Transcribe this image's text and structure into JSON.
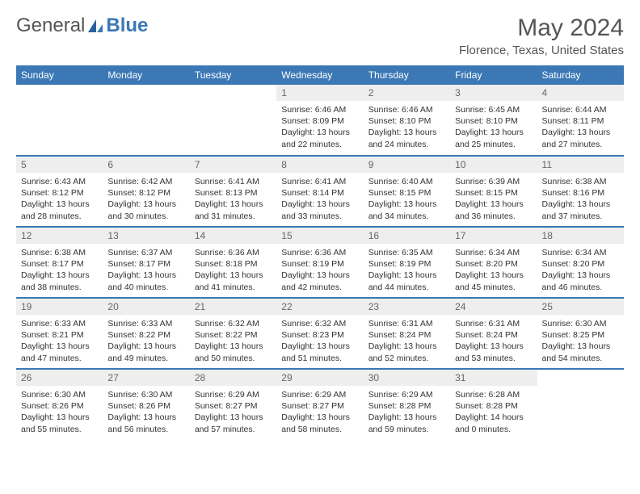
{
  "logo": {
    "text1": "General",
    "text2": "Blue"
  },
  "title": "May 2024",
  "location": "Florence, Texas, United States",
  "colors": {
    "header_bg": "#3b78b5",
    "header_text": "#ffffff",
    "daynum_bg": "#eeeeee",
    "daynum_text": "#666666",
    "rule": "#3b78b5",
    "body_text": "#333333",
    "title_text": "#555555"
  },
  "typography": {
    "month_title_fontsize": 30,
    "location_fontsize": 15,
    "weekday_fontsize": 12,
    "daynum_fontsize": 12,
    "cell_fontsize": 10.5,
    "font_family": "Arial"
  },
  "weekdays": [
    "Sunday",
    "Monday",
    "Tuesday",
    "Wednesday",
    "Thursday",
    "Friday",
    "Saturday"
  ],
  "weeks": [
    [
      {
        "empty": true
      },
      {
        "empty": true
      },
      {
        "empty": true
      },
      {
        "day": "1",
        "sunrise": "Sunrise: 6:46 AM",
        "sunset": "Sunset: 8:09 PM",
        "daylight1": "Daylight: 13 hours",
        "daylight2": "and 22 minutes."
      },
      {
        "day": "2",
        "sunrise": "Sunrise: 6:46 AM",
        "sunset": "Sunset: 8:10 PM",
        "daylight1": "Daylight: 13 hours",
        "daylight2": "and 24 minutes."
      },
      {
        "day": "3",
        "sunrise": "Sunrise: 6:45 AM",
        "sunset": "Sunset: 8:10 PM",
        "daylight1": "Daylight: 13 hours",
        "daylight2": "and 25 minutes."
      },
      {
        "day": "4",
        "sunrise": "Sunrise: 6:44 AM",
        "sunset": "Sunset: 8:11 PM",
        "daylight1": "Daylight: 13 hours",
        "daylight2": "and 27 minutes."
      }
    ],
    [
      {
        "day": "5",
        "sunrise": "Sunrise: 6:43 AM",
        "sunset": "Sunset: 8:12 PM",
        "daylight1": "Daylight: 13 hours",
        "daylight2": "and 28 minutes."
      },
      {
        "day": "6",
        "sunrise": "Sunrise: 6:42 AM",
        "sunset": "Sunset: 8:12 PM",
        "daylight1": "Daylight: 13 hours",
        "daylight2": "and 30 minutes."
      },
      {
        "day": "7",
        "sunrise": "Sunrise: 6:41 AM",
        "sunset": "Sunset: 8:13 PM",
        "daylight1": "Daylight: 13 hours",
        "daylight2": "and 31 minutes."
      },
      {
        "day": "8",
        "sunrise": "Sunrise: 6:41 AM",
        "sunset": "Sunset: 8:14 PM",
        "daylight1": "Daylight: 13 hours",
        "daylight2": "and 33 minutes."
      },
      {
        "day": "9",
        "sunrise": "Sunrise: 6:40 AM",
        "sunset": "Sunset: 8:15 PM",
        "daylight1": "Daylight: 13 hours",
        "daylight2": "and 34 minutes."
      },
      {
        "day": "10",
        "sunrise": "Sunrise: 6:39 AM",
        "sunset": "Sunset: 8:15 PM",
        "daylight1": "Daylight: 13 hours",
        "daylight2": "and 36 minutes."
      },
      {
        "day": "11",
        "sunrise": "Sunrise: 6:38 AM",
        "sunset": "Sunset: 8:16 PM",
        "daylight1": "Daylight: 13 hours",
        "daylight2": "and 37 minutes."
      }
    ],
    [
      {
        "day": "12",
        "sunrise": "Sunrise: 6:38 AM",
        "sunset": "Sunset: 8:17 PM",
        "daylight1": "Daylight: 13 hours",
        "daylight2": "and 38 minutes."
      },
      {
        "day": "13",
        "sunrise": "Sunrise: 6:37 AM",
        "sunset": "Sunset: 8:17 PM",
        "daylight1": "Daylight: 13 hours",
        "daylight2": "and 40 minutes."
      },
      {
        "day": "14",
        "sunrise": "Sunrise: 6:36 AM",
        "sunset": "Sunset: 8:18 PM",
        "daylight1": "Daylight: 13 hours",
        "daylight2": "and 41 minutes."
      },
      {
        "day": "15",
        "sunrise": "Sunrise: 6:36 AM",
        "sunset": "Sunset: 8:19 PM",
        "daylight1": "Daylight: 13 hours",
        "daylight2": "and 42 minutes."
      },
      {
        "day": "16",
        "sunrise": "Sunrise: 6:35 AM",
        "sunset": "Sunset: 8:19 PM",
        "daylight1": "Daylight: 13 hours",
        "daylight2": "and 44 minutes."
      },
      {
        "day": "17",
        "sunrise": "Sunrise: 6:34 AM",
        "sunset": "Sunset: 8:20 PM",
        "daylight1": "Daylight: 13 hours",
        "daylight2": "and 45 minutes."
      },
      {
        "day": "18",
        "sunrise": "Sunrise: 6:34 AM",
        "sunset": "Sunset: 8:20 PM",
        "daylight1": "Daylight: 13 hours",
        "daylight2": "and 46 minutes."
      }
    ],
    [
      {
        "day": "19",
        "sunrise": "Sunrise: 6:33 AM",
        "sunset": "Sunset: 8:21 PM",
        "daylight1": "Daylight: 13 hours",
        "daylight2": "and 47 minutes."
      },
      {
        "day": "20",
        "sunrise": "Sunrise: 6:33 AM",
        "sunset": "Sunset: 8:22 PM",
        "daylight1": "Daylight: 13 hours",
        "daylight2": "and 49 minutes."
      },
      {
        "day": "21",
        "sunrise": "Sunrise: 6:32 AM",
        "sunset": "Sunset: 8:22 PM",
        "daylight1": "Daylight: 13 hours",
        "daylight2": "and 50 minutes."
      },
      {
        "day": "22",
        "sunrise": "Sunrise: 6:32 AM",
        "sunset": "Sunset: 8:23 PM",
        "daylight1": "Daylight: 13 hours",
        "daylight2": "and 51 minutes."
      },
      {
        "day": "23",
        "sunrise": "Sunrise: 6:31 AM",
        "sunset": "Sunset: 8:24 PM",
        "daylight1": "Daylight: 13 hours",
        "daylight2": "and 52 minutes."
      },
      {
        "day": "24",
        "sunrise": "Sunrise: 6:31 AM",
        "sunset": "Sunset: 8:24 PM",
        "daylight1": "Daylight: 13 hours",
        "daylight2": "and 53 minutes."
      },
      {
        "day": "25",
        "sunrise": "Sunrise: 6:30 AM",
        "sunset": "Sunset: 8:25 PM",
        "daylight1": "Daylight: 13 hours",
        "daylight2": "and 54 minutes."
      }
    ],
    [
      {
        "day": "26",
        "sunrise": "Sunrise: 6:30 AM",
        "sunset": "Sunset: 8:26 PM",
        "daylight1": "Daylight: 13 hours",
        "daylight2": "and 55 minutes."
      },
      {
        "day": "27",
        "sunrise": "Sunrise: 6:30 AM",
        "sunset": "Sunset: 8:26 PM",
        "daylight1": "Daylight: 13 hours",
        "daylight2": "and 56 minutes."
      },
      {
        "day": "28",
        "sunrise": "Sunrise: 6:29 AM",
        "sunset": "Sunset: 8:27 PM",
        "daylight1": "Daylight: 13 hours",
        "daylight2": "and 57 minutes."
      },
      {
        "day": "29",
        "sunrise": "Sunrise: 6:29 AM",
        "sunset": "Sunset: 8:27 PM",
        "daylight1": "Daylight: 13 hours",
        "daylight2": "and 58 minutes."
      },
      {
        "day": "30",
        "sunrise": "Sunrise: 6:29 AM",
        "sunset": "Sunset: 8:28 PM",
        "daylight1": "Daylight: 13 hours",
        "daylight2": "and 59 minutes."
      },
      {
        "day": "31",
        "sunrise": "Sunrise: 6:28 AM",
        "sunset": "Sunset: 8:28 PM",
        "daylight1": "Daylight: 14 hours",
        "daylight2": "and 0 minutes."
      },
      {
        "empty": true
      }
    ]
  ]
}
